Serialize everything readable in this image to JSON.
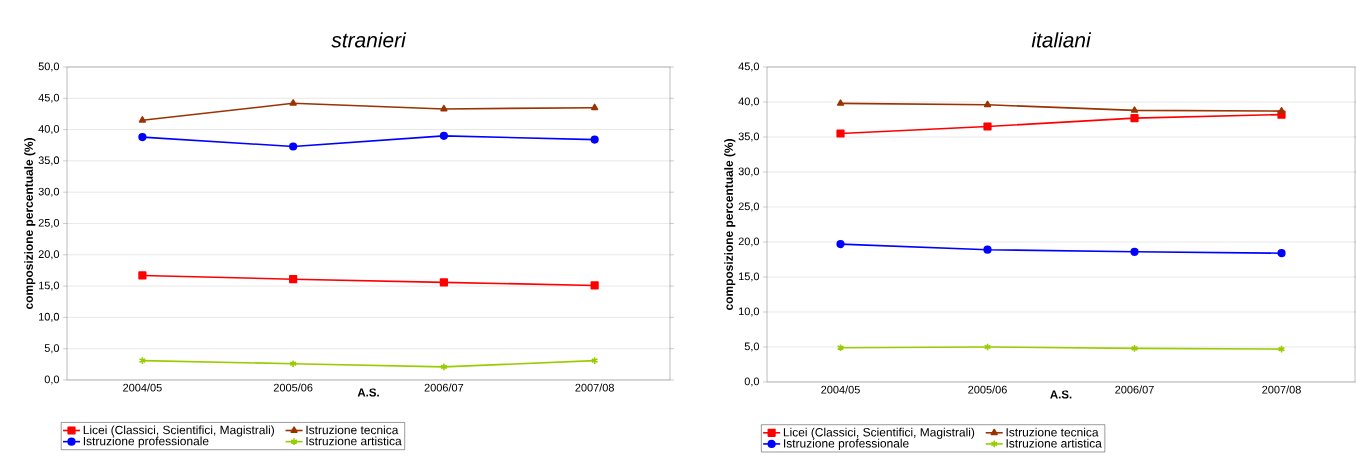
{
  "chart_data": [
    {
      "type": "line",
      "title": "stranieri",
      "xlabel": "A.S.",
      "ylabel": "composizione percentuale (%)",
      "categories": [
        "2004/05",
        "2005/06",
        "2006/07",
        "2007/08"
      ],
      "series": [
        {
          "name": "Licei (Classici, Scientifici, Magistrali)",
          "color": "#ff0000",
          "marker": "square",
          "values": [
            16.7,
            16.1,
            15.6,
            15.1
          ]
        },
        {
          "name": "Istruzione tecnica",
          "color": "#993300",
          "marker": "triangle",
          "values": [
            41.5,
            44.2,
            43.3,
            43.5
          ]
        },
        {
          "name": "Istruzione professionale",
          "color": "#0000ff",
          "marker": "circle",
          "values": [
            38.8,
            37.3,
            39.0,
            38.4
          ]
        },
        {
          "name": "Istruzione artistica",
          "color": "#99cc00",
          "marker": "cross",
          "values": [
            3.1,
            2.6,
            2.1,
            3.1
          ]
        }
      ],
      "ylim": [
        0,
        50
      ],
      "yticks": [
        {
          "value": 0,
          "label": "0,0"
        },
        {
          "value": 5,
          "label": "5,0"
        },
        {
          "value": 10,
          "label": "10,0"
        },
        {
          "value": 15,
          "label": "15,0"
        },
        {
          "value": 20,
          "label": "20,0"
        },
        {
          "value": 25,
          "label": "25,0"
        },
        {
          "value": 30,
          "label": "30,0"
        },
        {
          "value": 35,
          "label": "35,0"
        },
        {
          "value": 40,
          "label": "40,0"
        },
        {
          "value": 45,
          "label": "45,0"
        },
        {
          "value": 50,
          "label": "50,0"
        }
      ],
      "grid": "y",
      "legend": "bottom",
      "line_style": "solid"
    },
    {
      "type": "line",
      "title": "italiani",
      "xlabel": "A.S.",
      "ylabel": "composizione percentuale (%)",
      "categories": [
        "2004/05",
        "2005/06",
        "2006/07",
        "2007/08"
      ],
      "series": [
        {
          "name": "Licei (Classici, Scientifici, Magistrali)",
          "color": "#ff0000",
          "marker": "square",
          "values": [
            35.5,
            36.5,
            37.7,
            38.2
          ]
        },
        {
          "name": "Istruzione tecnica",
          "color": "#993300",
          "marker": "triangle",
          "values": [
            39.8,
            39.6,
            38.8,
            38.7
          ]
        },
        {
          "name": "Istruzione professionale",
          "color": "#0000ff",
          "marker": "circle",
          "values": [
            19.7,
            18.9,
            18.6,
            18.4
          ]
        },
        {
          "name": "Istruzione artistica",
          "color": "#99cc00",
          "marker": "cross",
          "values": [
            4.9,
            5.0,
            4.8,
            4.7
          ]
        }
      ],
      "ylim": [
        0,
        45
      ],
      "yticks": [
        {
          "value": 0,
          "label": "0,0"
        },
        {
          "value": 5,
          "label": "5,0"
        },
        {
          "value": 10,
          "label": "10,0"
        },
        {
          "value": 15,
          "label": "15,0"
        },
        {
          "value": 20,
          "label": "20,0"
        },
        {
          "value": 25,
          "label": "25,0"
        },
        {
          "value": 30,
          "label": "30,0"
        },
        {
          "value": 35,
          "label": "35,0"
        },
        {
          "value": 40,
          "label": "40,0"
        },
        {
          "value": 45,
          "label": "45,0"
        }
      ],
      "grid": "y",
      "legend": "bottom",
      "line_style": "solid"
    }
  ]
}
